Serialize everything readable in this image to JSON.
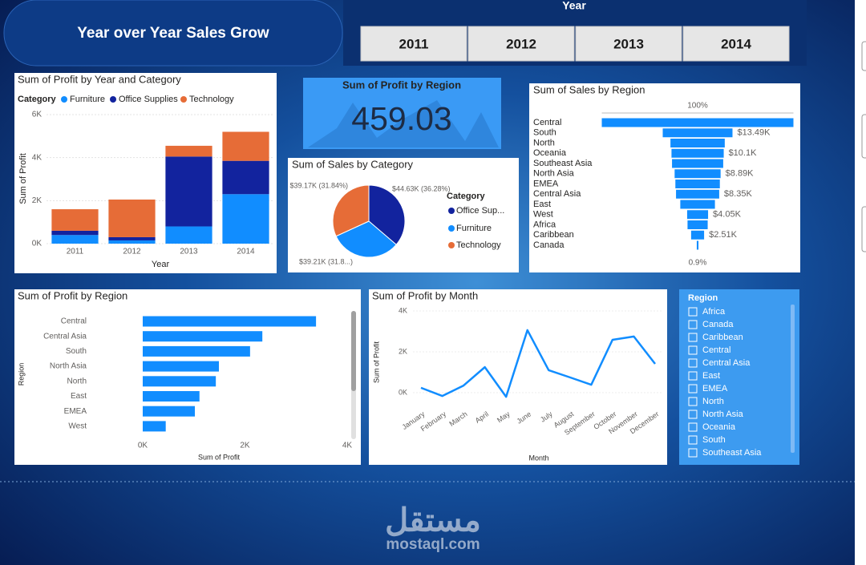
{
  "header": {
    "title": "Year over Year Sales Grow"
  },
  "year_slicer": {
    "title": "Year",
    "items": [
      "2011",
      "2012",
      "2013",
      "2014"
    ]
  },
  "kpi": {
    "title": "Sum of Profit by Region",
    "value": 459.03
  },
  "region_slicer": {
    "title": "Region",
    "items": [
      "Africa",
      "Canada",
      "Caribbean",
      "Central",
      "Central Asia",
      "East",
      "EMEA",
      "North",
      "North Asia",
      "Oceania",
      "South",
      "Southeast Asia"
    ]
  },
  "watermark": {
    "arabic": "مستقل",
    "latin": "mostaql.com"
  },
  "chart_data": [
    {
      "type": "bar",
      "stacked": true,
      "title": "Sum of Profit by Year and Category",
      "legend_title": "Category",
      "x_label": "Year",
      "y_label": "Sum of Profit",
      "categories": [
        "2011",
        "2012",
        "2013",
        "2014"
      ],
      "series": [
        {
          "name": "Furniture",
          "color": "#118dff",
          "values": [
            400,
            150,
            800,
            2300
          ]
        },
        {
          "name": "Office Supplies",
          "color": "#12239e",
          "values": [
            200,
            150,
            3250,
            1550
          ]
        },
        {
          "name": "Technology",
          "color": "#e66c37",
          "values": [
            1000,
            1750,
            500,
            1350
          ]
        }
      ],
      "ylim": [
        0,
        6000
      ],
      "yticks": [
        {
          "value": 0,
          "label": "0K"
        },
        {
          "value": 2000,
          "label": "2K"
        },
        {
          "value": 4000,
          "label": "4K"
        },
        {
          "value": 6000,
          "label": "6K"
        }
      ],
      "grid": true
    },
    {
      "type": "pie",
      "title": "Sum of Sales by Category",
      "legend_title": "Category",
      "categories": [
        "Office Sup...",
        "Furniture",
        "Technology"
      ],
      "values": [
        44630,
        39210,
        39170
      ],
      "value_labels": [
        "$44.63K (36.28%)",
        "$39.21K (31.8...)",
        "$39.17K (31.84%)"
      ],
      "colors": [
        "#12239e",
        "#118dff",
        "#e66c37"
      ]
    },
    {
      "type": "funnel",
      "title": "Sum of Sales by Region",
      "color": "#118dff",
      "first_label": "100%",
      "last_label": "0.9%",
      "categories": [
        "Central",
        "South",
        "North",
        "Oceania",
        "Southeast Asia",
        "North Asia",
        "EMEA",
        "Central Asia",
        "East",
        "West",
        "Africa",
        "Caribbean",
        "Canada"
      ],
      "values": [
        37060,
        13490,
        10500,
        10100,
        9900,
        8890,
        8600,
        8350,
        6700,
        4050,
        3900,
        2510,
        330
      ],
      "value_labels": [
        null,
        "$13.49K",
        null,
        "$10.1K",
        null,
        "$8.89K",
        null,
        "$8.35K",
        null,
        "$4.05K",
        null,
        "$2.51K",
        null
      ]
    },
    {
      "type": "bar",
      "orientation": "horizontal",
      "title": "Sum of Profit by Region",
      "color": "#118dff",
      "x_label": "Sum of Profit",
      "y_label": "Region",
      "categories": [
        "Central",
        "Central Asia",
        "South",
        "North Asia",
        "North",
        "East",
        "EMEA",
        "West"
      ],
      "values": [
        3390,
        2340,
        2100,
        1490,
        1430,
        1110,
        1020,
        450
      ],
      "xlim": [
        0,
        4000
      ],
      "xticks": [
        {
          "value": 0,
          "label": "0K"
        },
        {
          "value": 2000,
          "label": "2K"
        },
        {
          "value": 4000,
          "label": "4K"
        }
      ],
      "grid": false
    },
    {
      "type": "line",
      "title": "Sum of Profit by Month",
      "color": "#118dff",
      "x_label": "Month",
      "y_label": "Sum of Profit",
      "categories": [
        "January",
        "February",
        "March",
        "April",
        "May",
        "June",
        "July",
        "August",
        "September",
        "October",
        "November",
        "December"
      ],
      "values": [
        240,
        -160,
        350,
        1250,
        -200,
        3060,
        1100,
        750,
        390,
        2590,
        2750,
        1410
      ],
      "ylim": [
        -600,
        4000
      ],
      "yticks": [
        {
          "value": 0,
          "label": "0K"
        },
        {
          "value": 2000,
          "label": "2K"
        },
        {
          "value": 4000,
          "label": "4K"
        }
      ],
      "grid": true
    }
  ]
}
